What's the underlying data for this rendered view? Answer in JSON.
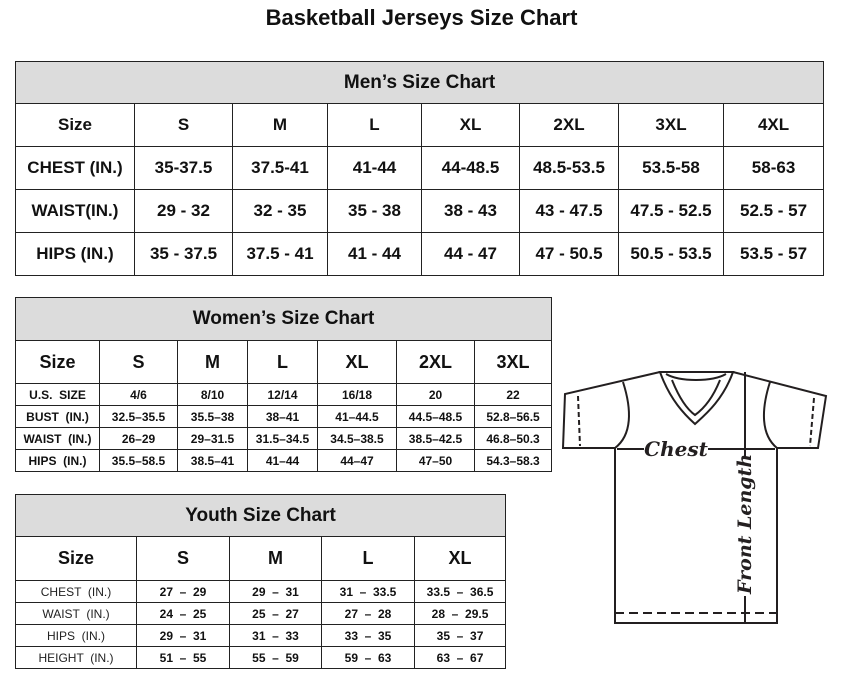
{
  "title": "Basketball Jerseys Size Chart",
  "men": {
    "caption": "Men’s Size Chart",
    "header": [
      "Size",
      "S",
      "M",
      "L",
      "XL",
      "2XL",
      "3XL",
      "4XL"
    ],
    "rows": [
      [
        "CHEST (IN.)",
        "35-37.5",
        "37.5-41",
        "41-44",
        "44-48.5",
        "48.5-53.5",
        "53.5-58",
        "58-63"
      ],
      [
        "WAIST(IN.)",
        "29 - 32",
        "32 - 35",
        "35 - 38",
        "38 - 43",
        "43 - 47.5",
        "47.5 - 52.5",
        "52.5 - 57"
      ],
      [
        "HIPS (IN.)",
        "35 - 37.5",
        "37.5 - 41",
        "41 - 44",
        "44 - 47",
        "47 - 50.5",
        "50.5 - 53.5",
        "53.5 - 57"
      ]
    ]
  },
  "women": {
    "caption": "Women’s Size Chart",
    "header": [
      "Size",
      "S",
      "M",
      "L",
      "XL",
      "2XL",
      "3XL"
    ],
    "rows": [
      [
        "U.S.  SIZE",
        "4/6",
        "8/10",
        "12/14",
        "16/18",
        "20",
        "22"
      ],
      [
        "BUST  (IN.)",
        "32.5–35.5",
        "35.5–38",
        "38–41",
        "41–44.5",
        "44.5–48.5",
        "52.8–56.5"
      ],
      [
        "WAIST  (IN.)",
        "26–29",
        "29–31.5",
        "31.5–34.5",
        "34.5–38.5",
        "38.5–42.5",
        "46.8–50.3"
      ],
      [
        "HIPS  (IN.)",
        "35.5–58.5",
        "38.5–41",
        "41–44",
        "44–47",
        "47–50",
        "54.3–58.3"
      ]
    ]
  },
  "youth": {
    "caption": "Youth Size Chart",
    "header": [
      "Size",
      "S",
      "M",
      "L",
      "XL"
    ],
    "rows": [
      [
        "CHEST  (IN.)",
        "27  –  29",
        "29  –  31",
        "31  –  33.5",
        "33.5  –  36.5"
      ],
      [
        "WAIST  (IN.)",
        "24  –  25",
        "25  –  27",
        "27  –  28",
        "28  –  29.5"
      ],
      [
        "HIPS  (IN.)",
        "29  –  31",
        "31  –  33",
        "33  –  35",
        "35  –  37"
      ],
      [
        "HEIGHT  (IN.)",
        "51  –  55",
        "55  –  59",
        "59  –  63",
        "63  –  67"
      ]
    ]
  },
  "diagram": {
    "chest_label": "Chest",
    "length_label": "Front Length",
    "icon": "t-shirt-icon"
  }
}
